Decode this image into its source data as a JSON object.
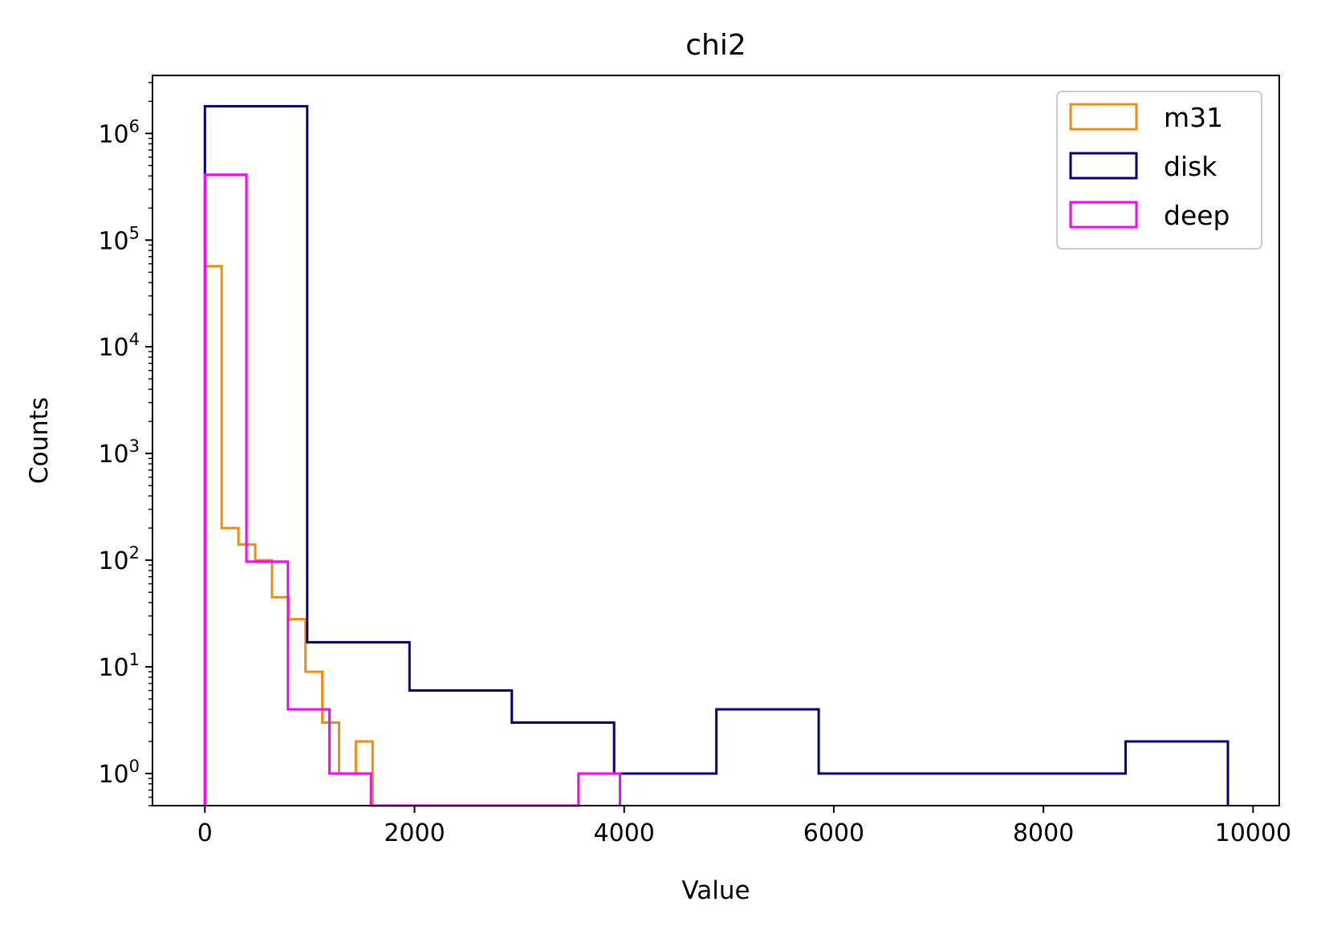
{
  "chart_data": {
    "type": "histogram",
    "title": "chi2",
    "xlabel": "Value",
    "ylabel": "Counts",
    "yscale": "log",
    "xlim": [
      -500,
      10250
    ],
    "ylim": [
      0.5,
      3500000
    ],
    "grid": false,
    "legend_position": "top-right",
    "x_ticks": [
      0,
      2000,
      4000,
      6000,
      8000,
      10000
    ],
    "x_tick_labels": [
      "0",
      "2000",
      "4000",
      "6000",
      "8000",
      "10000"
    ],
    "y_ticks": [
      1,
      10,
      100,
      1000,
      10000,
      100000,
      1000000
    ],
    "y_tick_labels": [
      {
        "base": "10",
        "exp": "0"
      },
      {
        "base": "10",
        "exp": "1"
      },
      {
        "base": "10",
        "exp": "2"
      },
      {
        "base": "10",
        "exp": "3"
      },
      {
        "base": "10",
        "exp": "4"
      },
      {
        "base": "10",
        "exp": "5"
      },
      {
        "base": "10",
        "exp": "6"
      }
    ],
    "series": [
      {
        "name": "m31",
        "color": "#f28c0f",
        "bin_edges": [
          0,
          160,
          320,
          480,
          640,
          800,
          960,
          1120,
          1280,
          1440,
          1600
        ],
        "counts": [
          57000,
          200,
          140,
          100,
          45,
          28,
          9,
          3,
          1,
          2
        ]
      },
      {
        "name": "disk",
        "color": "#00007f",
        "bin_edges": [
          0,
          976,
          1952,
          2928,
          3904,
          4880,
          5856,
          6832,
          7808,
          8784,
          9760
        ],
        "counts": [
          1800000,
          17,
          6,
          3,
          1,
          4,
          1,
          1,
          1,
          2
        ]
      },
      {
        "name": "deep",
        "color": "#ff00ff",
        "bin_edges": [
          0,
          396,
          792,
          1188,
          1584,
          1980,
          2376,
          2772,
          3168,
          3564,
          3960
        ],
        "counts": [
          410000,
          97,
          4,
          1,
          0,
          0,
          0,
          0,
          0,
          1
        ]
      }
    ]
  }
}
